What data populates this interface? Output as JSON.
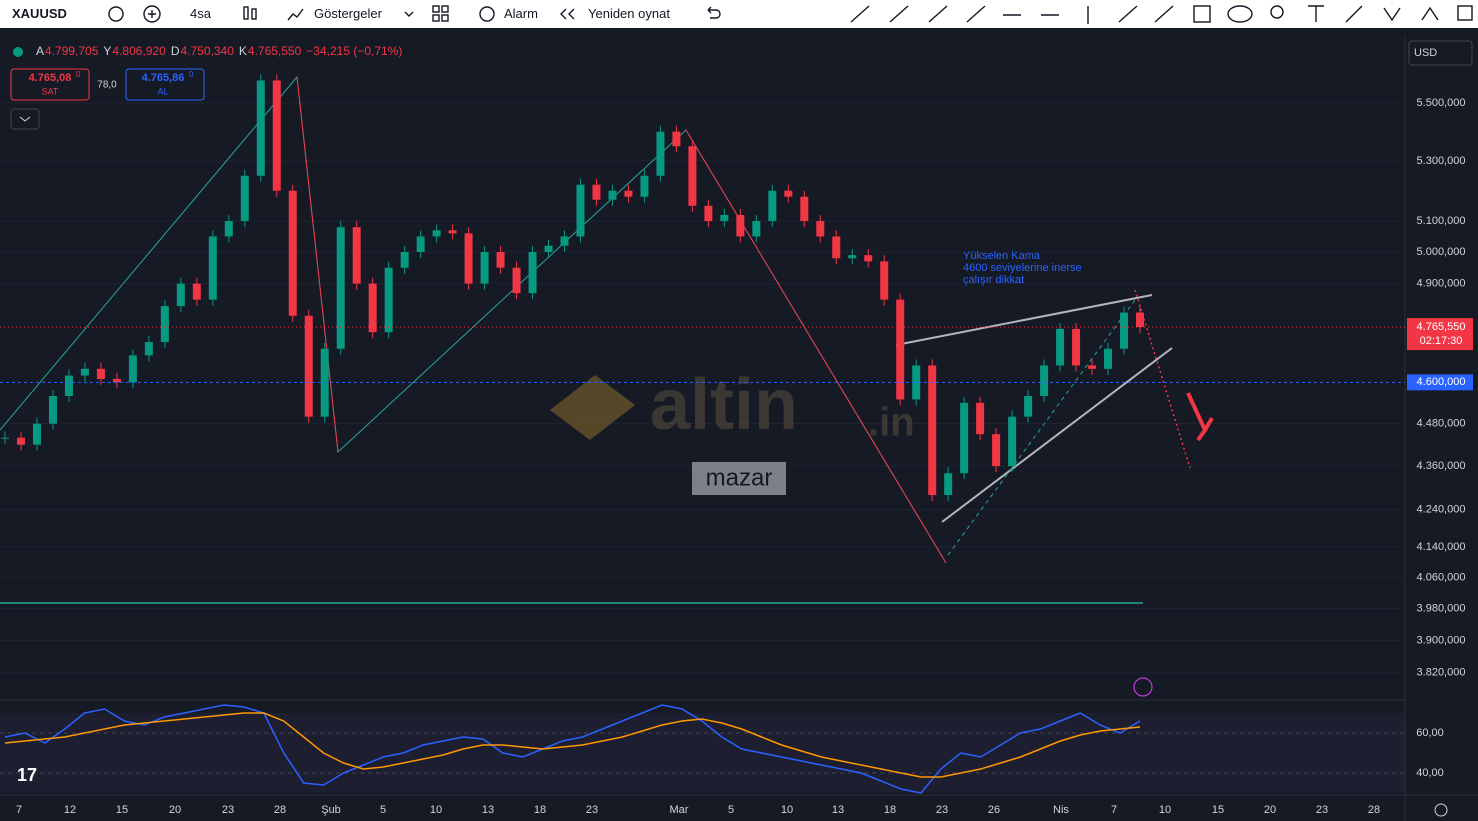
{
  "toolbar": {
    "symbol": "XAUUSD",
    "interval": "4sa",
    "indicators": "Göstergeler",
    "alarm": "Alarm",
    "replay": "Yeniden oynat"
  },
  "legend": {
    "ohlc": [
      {
        "label": "A",
        "value": "4.799,705"
      },
      {
        "label": "Y",
        "value": "4.806,920"
      },
      {
        "label": "D",
        "value": "4.750,340"
      },
      {
        "label": "K",
        "value": "4.765,550"
      }
    ],
    "change": "−34,215 (−0,71%)"
  },
  "trade": {
    "sell_price": "4.765,08",
    "sell_sup": "0",
    "sell_label": "SAT",
    "spread": "78,0",
    "buy_price": "4.765,86",
    "buy_sup": "0",
    "buy_label": "AL"
  },
  "currency": "USD",
  "annotation": [
    "Yükselen Kama",
    "4600 seviyelerine inerse",
    "çalışır dikkat"
  ],
  "watermark": {
    "brand": "altin",
    "suffix": ".in",
    "author": "mazar"
  },
  "time_axis": [
    "7",
    "12",
    "15",
    "20",
    "23",
    "28",
    "Şub",
    "5",
    "10",
    "13",
    "18",
    "23",
    "Mar",
    "5",
    "10",
    "13",
    "18",
    "23",
    "26",
    "Nis",
    "7",
    "10",
    "15",
    "20",
    "23",
    "28"
  ],
  "chart_data": {
    "type": "candle-close",
    "log_scale": true,
    "up_color": "#089981",
    "down_color": "#f23645",
    "ylim": [
      3754,
      5741
    ],
    "yticks": [
      {
        "value": 5500,
        "label": "5.500,000"
      },
      {
        "value": 5300,
        "label": "5.300,000"
      },
      {
        "value": 5100,
        "label": "5.100,000"
      },
      {
        "value": 5000,
        "label": "5.000,000"
      },
      {
        "value": 4900,
        "label": "4.900,000"
      },
      {
        "value": 4480,
        "label": "4.480,000"
      },
      {
        "value": 4360,
        "label": "4.360,000"
      },
      {
        "value": 4240,
        "label": "4.240,000"
      },
      {
        "value": 4140,
        "label": "4.140,000"
      },
      {
        "value": 4060,
        "label": "4.060,000"
      },
      {
        "value": 3980,
        "label": "3.980,000"
      },
      {
        "value": 3900,
        "label": "3.900,000"
      },
      {
        "value": 3820,
        "label": "3.820,000"
      }
    ],
    "values": [
      4440,
      4420,
      4480,
      4560,
      4620,
      4640,
      4610,
      4600,
      4680,
      4720,
      4830,
      4900,
      4850,
      5050,
      5100,
      5250,
      5580,
      5200,
      4800,
      4500,
      4700,
      5080,
      4900,
      4750,
      4950,
      5000,
      5050,
      5070,
      5060,
      4900,
      5000,
      4950,
      4870,
      5000,
      5020,
      5050,
      5220,
      5170,
      5200,
      5180,
      5250,
      5400,
      5350,
      5150,
      5100,
      5120,
      5050,
      5100,
      5200,
      5180,
      5100,
      5050,
      4980,
      4990,
      4970,
      4850,
      4550,
      4650,
      4280,
      4340,
      4540,
      4450,
      4360,
      4500,
      4560,
      4650,
      4760,
      4650,
      4640,
      4700,
      4810,
      4765.55
    ],
    "last_price": {
      "value": 4765.55,
      "label": "4.765,550"
    },
    "countdown": "02:17:30",
    "level": {
      "value": 4600,
      "label": "4.600,000"
    }
  },
  "rsi_data": {
    "type": "line",
    "ylim": [
      29,
      76.5
    ],
    "yticks": [
      {
        "value": 60,
        "label": "60,00"
      },
      {
        "value": 40,
        "label": "40,00"
      }
    ],
    "series": [
      {
        "color": "#2962ff",
        "values": [
          58,
          60,
          55,
          62,
          70,
          72,
          66,
          64,
          68,
          70,
          72,
          74,
          73,
          70,
          50,
          35,
          34,
          40,
          44,
          48,
          50,
          54,
          56,
          58,
          57,
          50,
          48,
          52,
          56,
          58,
          62,
          66,
          70,
          74,
          72,
          66,
          58,
          52,
          50,
          48,
          46,
          44,
          42,
          40,
          36,
          32,
          30,
          42,
          50,
          48,
          54,
          60,
          62,
          66,
          70,
          64,
          60,
          66
        ]
      },
      {
        "color": "#ff9800",
        "values": [
          55,
          56,
          57,
          58,
          60,
          62,
          64,
          65,
          66,
          67,
          68,
          69,
          70,
          70,
          66,
          58,
          50,
          45,
          42,
          43,
          45,
          47,
          49,
          52,
          54,
          54,
          53,
          52,
          53,
          54,
          56,
          58,
          61,
          64,
          66,
          67,
          65,
          62,
          58,
          54,
          51,
          48,
          46,
          44,
          42,
          40,
          38,
          38,
          40,
          42,
          45,
          48,
          52,
          56,
          59,
          61,
          62,
          63
        ]
      }
    ]
  }
}
